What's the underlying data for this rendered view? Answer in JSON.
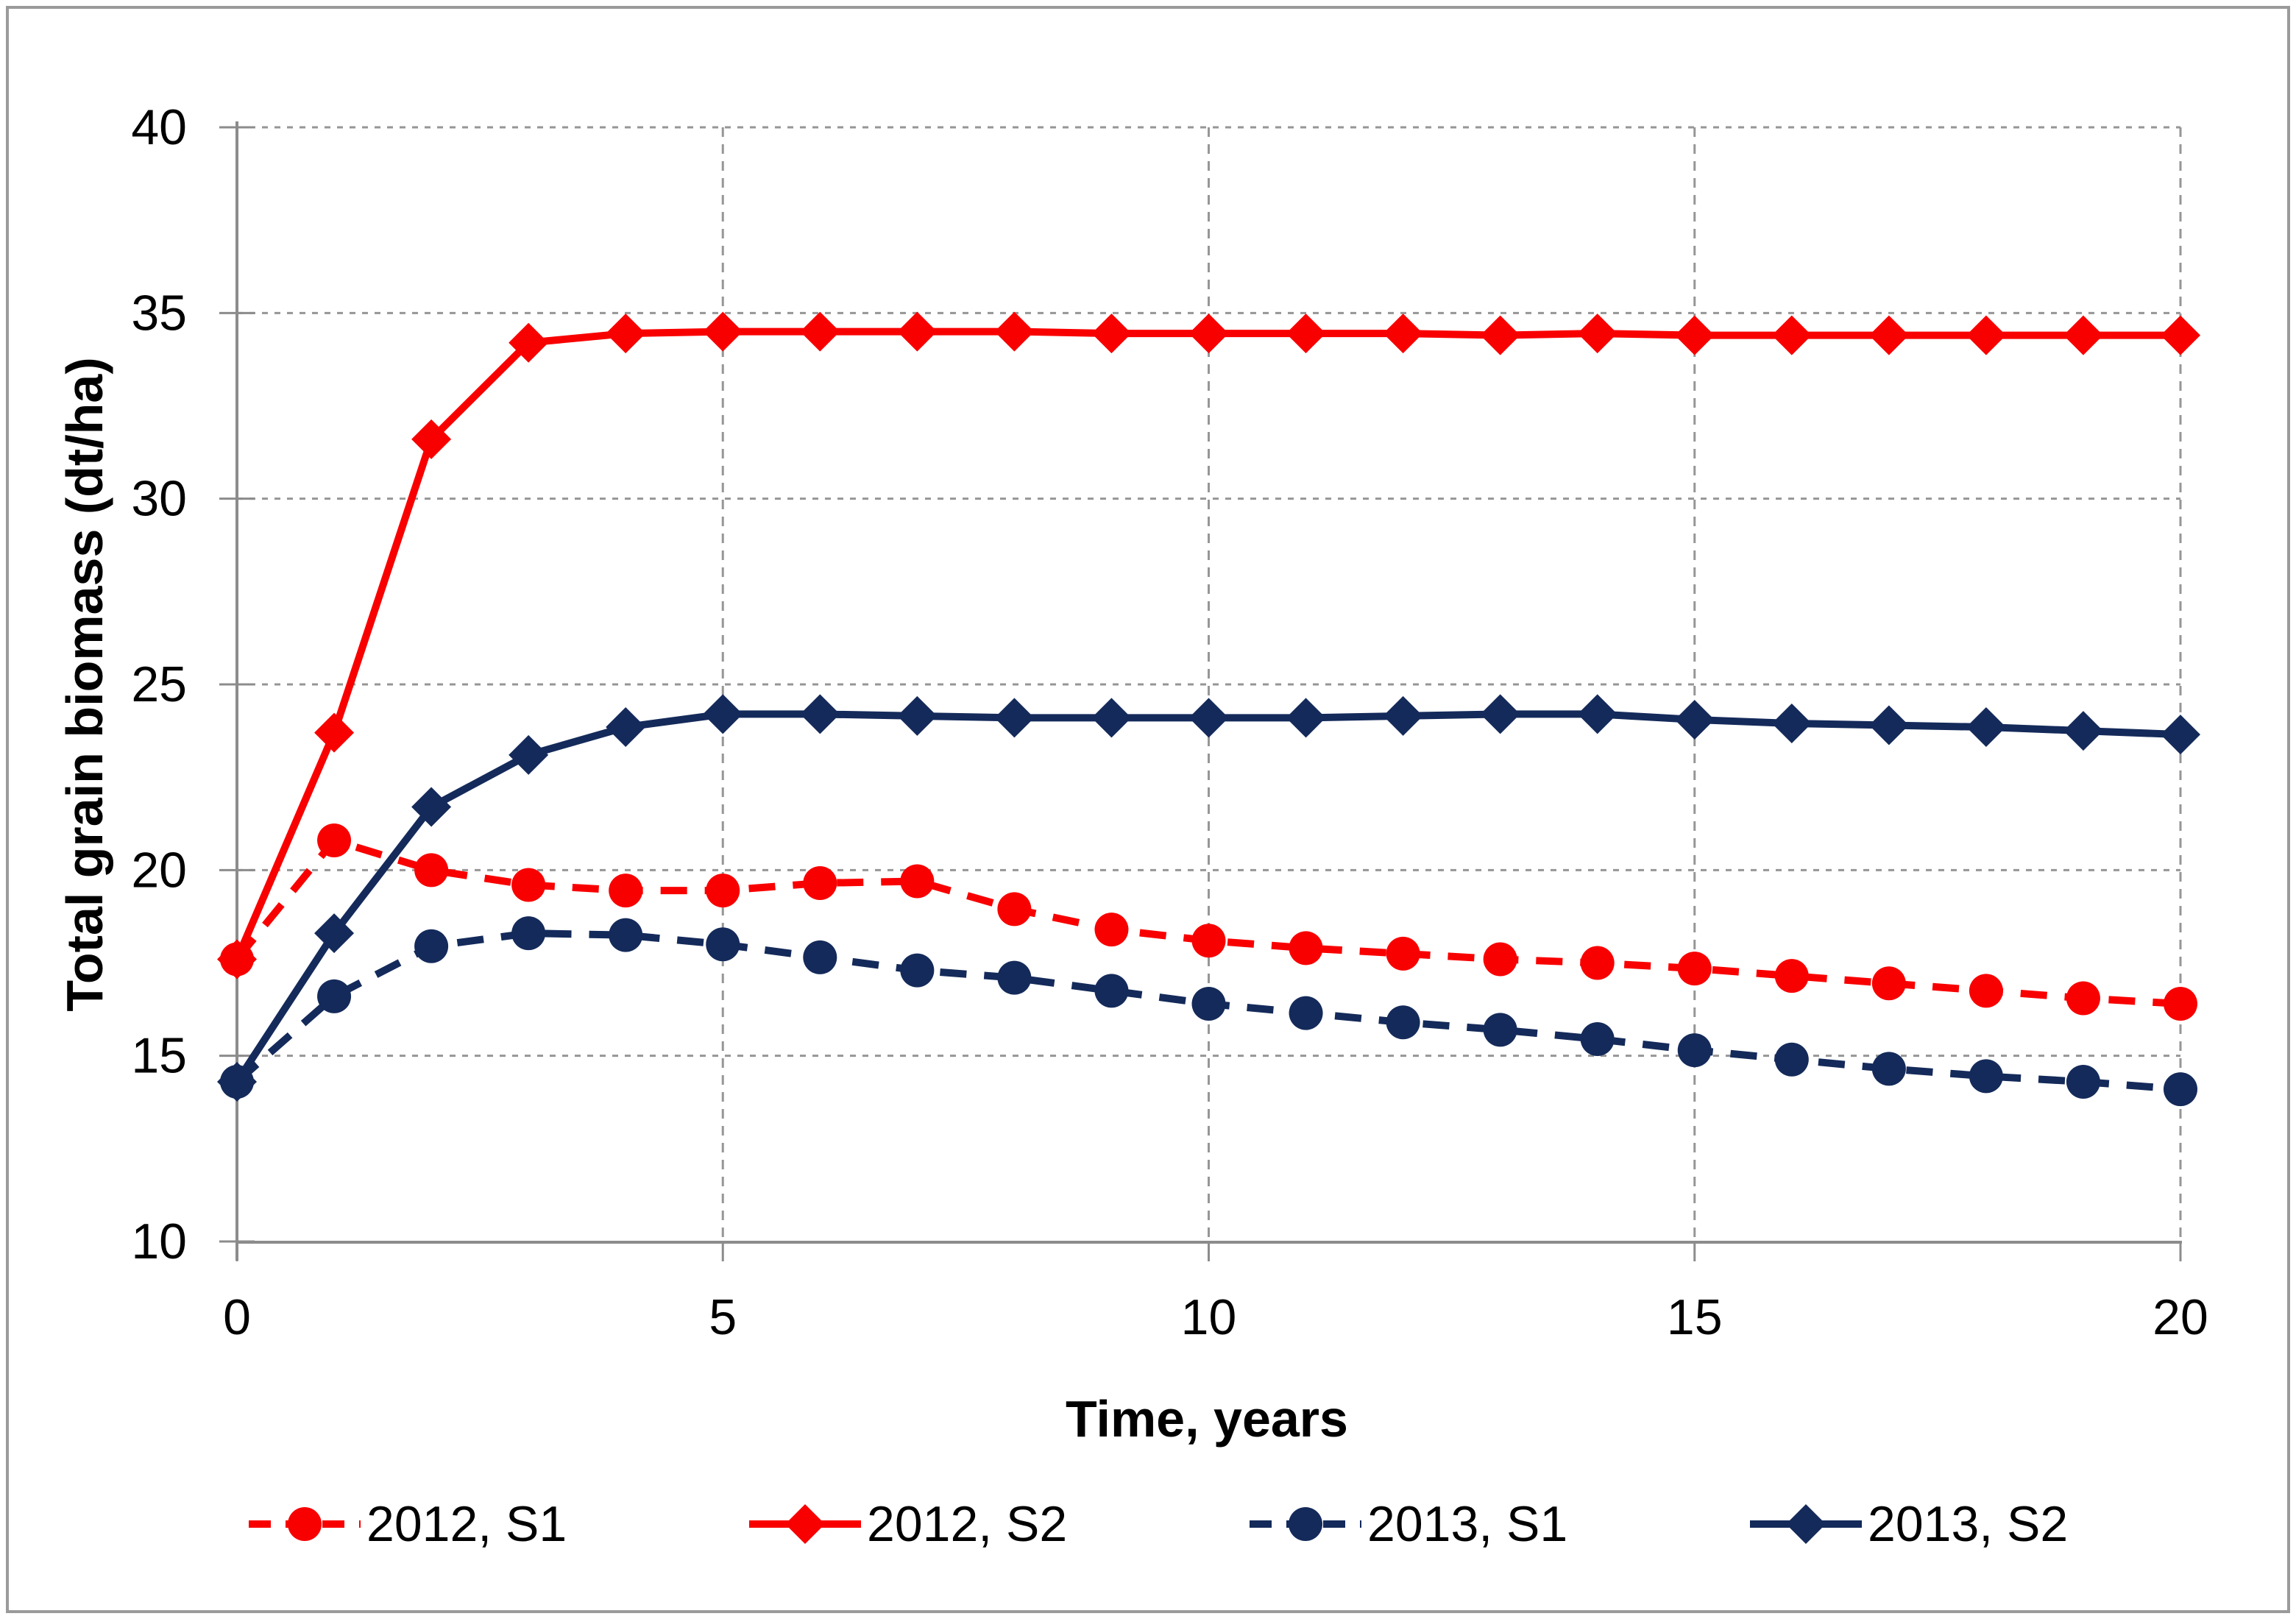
{
  "figure": {
    "background": "#ffffff",
    "border_color": "#9a9a9a",
    "axis_color": "#8c8c8c",
    "gridline_color": "#969696",
    "text_color": "#000000"
  },
  "chart_data": {
    "type": "line",
    "title": "",
    "xlabel": "Time, years",
    "ylabel": "Total grain biomass (dt/ha)",
    "x": [
      0,
      1,
      2,
      3,
      4,
      5,
      6,
      7,
      8,
      9,
      10,
      11,
      12,
      13,
      14,
      15,
      16,
      17,
      18,
      19,
      20
    ],
    "xlim": [
      0,
      20
    ],
    "ylim": [
      10,
      40
    ],
    "x_ticks": [
      0,
      5,
      10,
      15,
      20
    ],
    "y_ticks": [
      10,
      15,
      20,
      25,
      30,
      35,
      40
    ],
    "grid": true,
    "legend_position": "bottom",
    "series": [
      {
        "name": "2012, S1",
        "color": "#f90000",
        "line_style": "dashed",
        "marker": "circle",
        "values": [
          17.6,
          20.8,
          20.0,
          19.6,
          19.45,
          19.45,
          19.65,
          19.7,
          18.95,
          18.4,
          18.1,
          17.9,
          17.75,
          17.6,
          17.5,
          17.35,
          17.15,
          16.95,
          16.75,
          16.55,
          16.4
        ]
      },
      {
        "name": "2012, S2",
        "color": "#f90000",
        "line_style": "solid",
        "marker": "diamond",
        "values": [
          17.6,
          23.7,
          31.6,
          34.2,
          34.45,
          34.5,
          34.5,
          34.5,
          34.5,
          34.45,
          34.45,
          34.45,
          34.45,
          34.4,
          34.45,
          34.4,
          34.4,
          34.4,
          34.4,
          34.4,
          34.4
        ]
      },
      {
        "name": "2013, S1",
        "color": "#142a5a",
        "line_style": "dashed",
        "marker": "circle",
        "values": [
          14.3,
          16.6,
          17.95,
          18.3,
          18.25,
          18.0,
          17.65,
          17.3,
          17.1,
          16.75,
          16.4,
          16.15,
          15.9,
          15.7,
          15.45,
          15.15,
          14.9,
          14.65,
          14.45,
          14.3,
          14.1
        ]
      },
      {
        "name": "2013, S2",
        "color": "#142a5a",
        "line_style": "solid",
        "marker": "diamond",
        "values": [
          14.3,
          18.3,
          21.7,
          23.1,
          23.85,
          24.2,
          24.2,
          24.15,
          24.1,
          24.1,
          24.1,
          24.1,
          24.15,
          24.2,
          24.2,
          24.05,
          23.95,
          23.9,
          23.85,
          23.75,
          23.65
        ]
      }
    ]
  }
}
